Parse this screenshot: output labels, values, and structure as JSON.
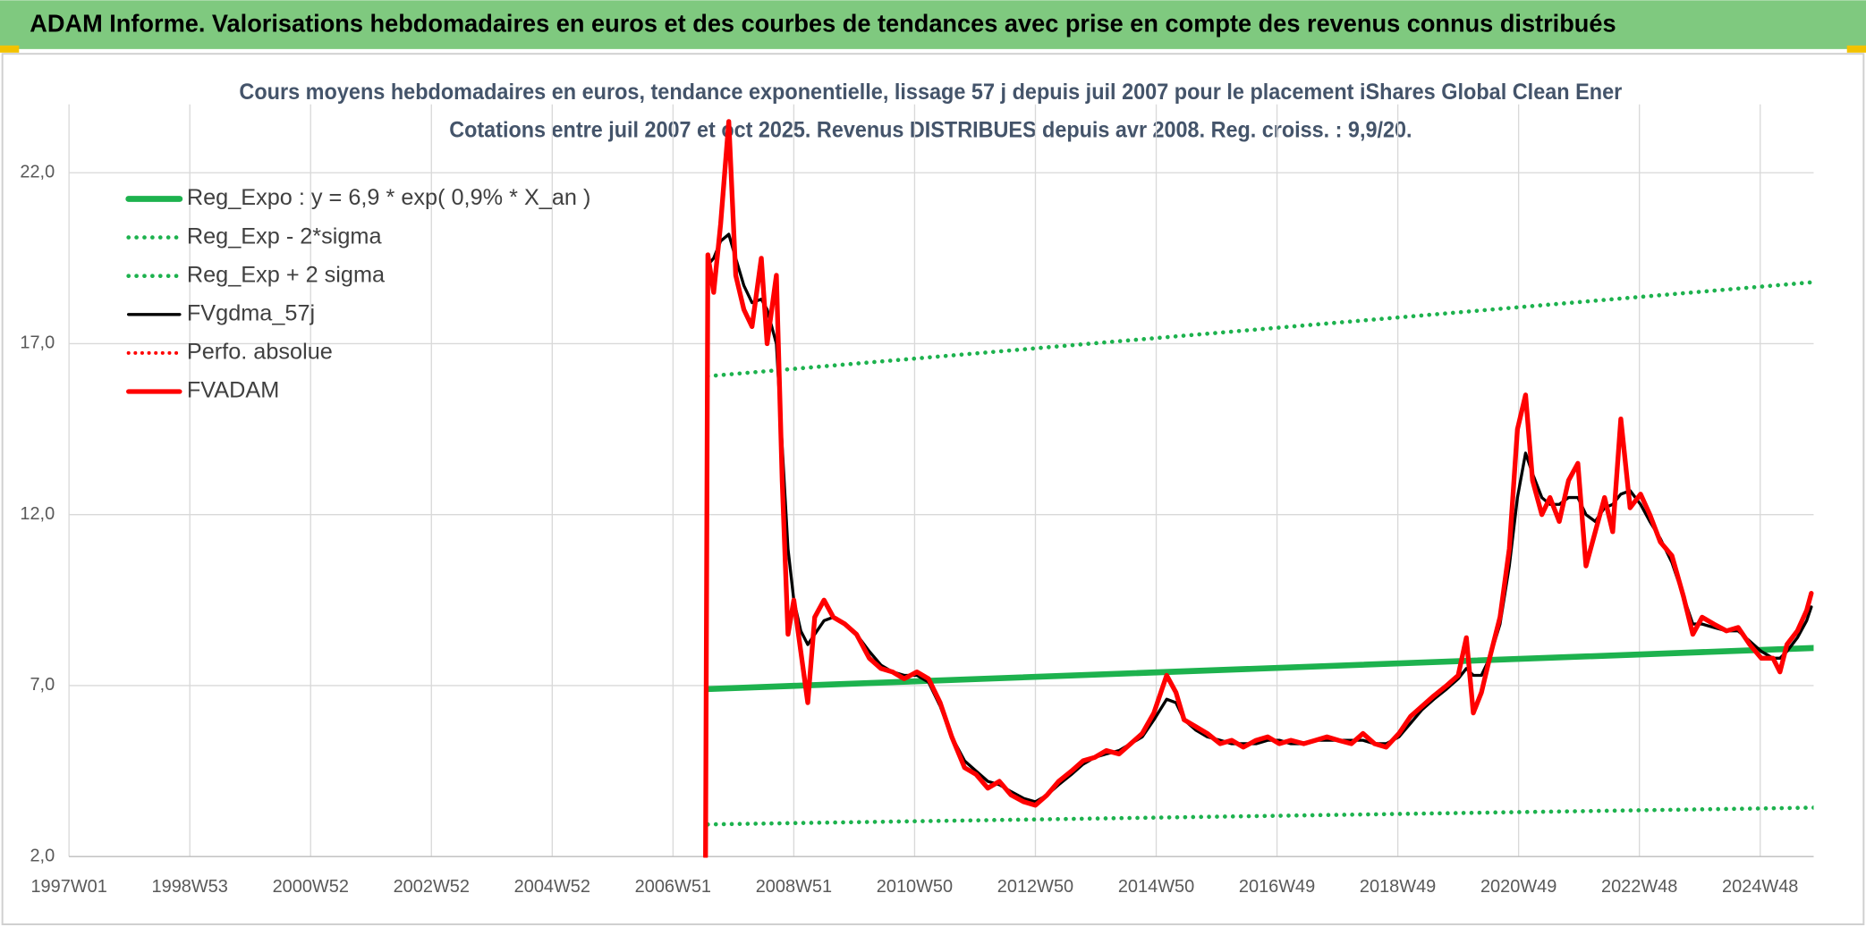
{
  "chart_data": {
    "type": "line",
    "header": "ADAM Informe. Valorisations hebdomadaires en euros et des courbes de tendances avec prise en compte des revenus connus distribués",
    "title": "Cours moyens hebdomadaires en euros, tendance exponentielle, lissage 57 j depuis juil 2007 pour le placement iShares Global Clean Ener",
    "subtitle": "Cotations entre juil 2007 et oct 2025. Revenus DISTRIBUES depuis avr 2008. Reg. croiss. : 9,9/20.",
    "xlim": [
      0,
      1502
    ],
    "xticks": [
      {
        "value": 0,
        "label": "1997W01"
      },
      {
        "value": 104,
        "label": "1998W53"
      },
      {
        "value": 208,
        "label": "2000W52"
      },
      {
        "value": 312,
        "label": "2002W52"
      },
      {
        "value": 416,
        "label": "2004W52"
      },
      {
        "value": 520,
        "label": "2006W51"
      },
      {
        "value": 624,
        "label": "2008W51"
      },
      {
        "value": 728,
        "label": "2010W50"
      },
      {
        "value": 832,
        "label": "2012W50"
      },
      {
        "value": 936,
        "label": "2014W50"
      },
      {
        "value": 1040,
        "label": "2016W49"
      },
      {
        "value": 1144,
        "label": "2018W49"
      },
      {
        "value": 1248,
        "label": "2020W49"
      },
      {
        "value": 1352,
        "label": "2022W48"
      },
      {
        "value": 1456,
        "label": "2024W48"
      }
    ],
    "ylim": [
      2,
      24
    ],
    "yticks": [
      {
        "value": 2,
        "label": "2,0"
      },
      {
        "value": 7,
        "label": "7,0"
      },
      {
        "value": 12,
        "label": "12,0"
      },
      {
        "value": 17,
        "label": "17,0"
      },
      {
        "value": 22,
        "label": "22,0"
      }
    ],
    "grid": true,
    "legend": "top-left",
    "x": [
      548,
      550,
      555,
      561,
      568,
      574,
      581,
      588,
      596,
      601,
      609,
      614,
      619,
      624,
      630,
      636,
      642,
      650,
      658,
      668,
      678,
      689,
      699,
      709,
      719,
      730,
      740,
      750,
      760,
      771,
      781,
      791,
      801,
      811,
      822,
      832,
      842,
      852,
      863,
      873,
      883,
      893,
      904,
      914,
      924,
      934,
      945,
      953,
      960,
      970,
      980,
      991,
      1001,
      1011,
      1022,
      1032,
      1042,
      1052,
      1063,
      1073,
      1083,
      1093,
      1104,
      1114,
      1124,
      1134,
      1145,
      1155,
      1165,
      1175,
      1186,
      1196,
      1203,
      1209,
      1216,
      1223,
      1232,
      1240,
      1247,
      1254,
      1260,
      1268,
      1275,
      1283,
      1291,
      1299,
      1306,
      1314,
      1322,
      1329,
      1336,
      1344,
      1353,
      1361,
      1370,
      1380,
      1390,
      1398,
      1406,
      1416,
      1427,
      1437,
      1447,
      1457,
      1467,
      1473,
      1479,
      1488,
      1496,
      1500
    ],
    "series": [
      {
        "name": "Reg_Expo : y = 6,9 * exp( 0,9% *  X_an )",
        "color": "#1db24e",
        "width": 5,
        "dash": "solid",
        "x": [
          550,
          1502
        ],
        "values": [
          6.9,
          8.1
        ]
      },
      {
        "name": "Reg_Exp - 2*sigma",
        "color": "#1db24e",
        "width": 3.5,
        "dash": "dotted",
        "x": [
          550,
          1502
        ],
        "values": [
          2.94,
          3.43
        ]
      },
      {
        "name": "Reg_Exp + 2 sigma",
        "color": "#1db24e",
        "width": 3.5,
        "dash": "dotted",
        "x": [
          550,
          1502
        ],
        "values": [
          16.05,
          18.8
        ]
      },
      {
        "name": "FVgdma_57j",
        "color": "#000000",
        "width": 2.5,
        "dash": "solid",
        "values": [
          null,
          19.3,
          19.5,
          20.0,
          20.2,
          19.5,
          18.7,
          18.2,
          18.3,
          18.0,
          17.0,
          14.0,
          11.0,
          9.5,
          8.6,
          8.2,
          8.5,
          8.9,
          9.0,
          8.8,
          8.5,
          8.0,
          7.6,
          7.4,
          7.3,
          7.3,
          7.1,
          6.4,
          5.5,
          4.8,
          4.5,
          4.2,
          4.1,
          3.9,
          3.7,
          3.6,
          3.8,
          4.1,
          4.4,
          4.7,
          4.9,
          5.0,
          5.1,
          5.3,
          5.5,
          6.0,
          6.6,
          6.5,
          6.0,
          5.7,
          5.5,
          5.4,
          5.3,
          5.3,
          5.3,
          5.4,
          5.4,
          5.3,
          5.3,
          5.4,
          5.4,
          5.4,
          5.4,
          5.4,
          5.3,
          5.3,
          5.5,
          5.9,
          6.3,
          6.6,
          6.9,
          7.2,
          7.5,
          7.3,
          7.3,
          7.8,
          8.8,
          10.5,
          12.5,
          13.8,
          13.2,
          12.5,
          12.3,
          12.3,
          12.5,
          12.5,
          12.0,
          11.8,
          12.2,
          12.3,
          12.6,
          12.7,
          12.3,
          11.8,
          11.3,
          10.6,
          9.6,
          8.8,
          8.8,
          8.7,
          8.6,
          8.6,
          8.3,
          8.0,
          7.8,
          7.8,
          8.0,
          8.4,
          8.9,
          9.3
        ]
      },
      {
        "name": "Perfo. absolue",
        "color": "#ff0000",
        "width": 3,
        "dash": "dotted",
        "x": [],
        "values": []
      },
      {
        "name": "FVADAM",
        "color": "#ff0000",
        "width": 4,
        "dash": "solid",
        "values": [
          2.0,
          19.6,
          18.5,
          20.5,
          23.5,
          19.0,
          18.0,
          17.5,
          19.5,
          17.0,
          19.0,
          13.0,
          8.5,
          9.5,
          8.0,
          6.5,
          9.0,
          9.5,
          9.0,
          8.8,
          8.5,
          7.8,
          7.5,
          7.4,
          7.2,
          7.4,
          7.2,
          6.5,
          5.5,
          4.6,
          4.4,
          4.0,
          4.2,
          3.8,
          3.6,
          3.5,
          3.8,
          4.2,
          4.5,
          4.8,
          4.9,
          5.1,
          5.0,
          5.3,
          5.6,
          6.2,
          7.3,
          6.8,
          6.0,
          5.8,
          5.6,
          5.3,
          5.4,
          5.2,
          5.4,
          5.5,
          5.3,
          5.4,
          5.3,
          5.4,
          5.5,
          5.4,
          5.3,
          5.6,
          5.3,
          5.2,
          5.6,
          6.1,
          6.4,
          6.7,
          7.0,
          7.3,
          8.4,
          6.2,
          6.8,
          7.8,
          9.0,
          11.0,
          14.5,
          15.5,
          13.0,
          12.0,
          12.5,
          11.8,
          13.0,
          13.5,
          10.5,
          11.5,
          12.5,
          11.5,
          14.8,
          12.2,
          12.6,
          12.0,
          11.2,
          10.8,
          9.6,
          8.5,
          9.0,
          8.8,
          8.6,
          8.7,
          8.2,
          7.8,
          7.8,
          7.4,
          8.2,
          8.6,
          9.2,
          9.7
        ]
      }
    ]
  }
}
